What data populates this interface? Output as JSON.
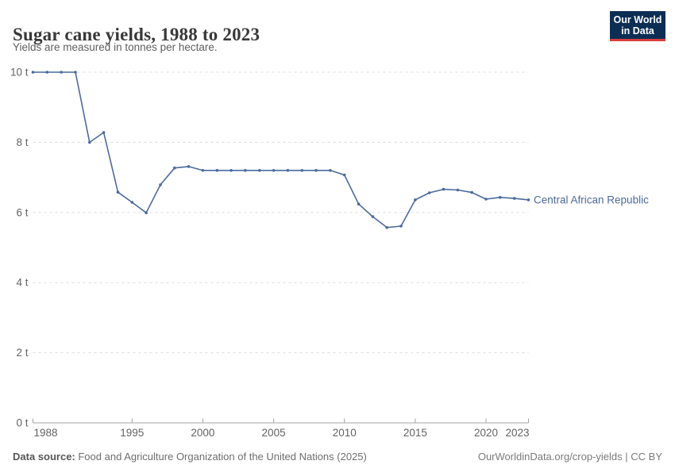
{
  "header": {
    "title": "Sugar cane yields, 1988 to 2023",
    "subtitle": "Yields are measured in tonnes per hectare."
  },
  "logo": {
    "line1": "Our World",
    "line2": "in Data",
    "bg_color": "#0d2e54",
    "accent_color": "#dc3f3f"
  },
  "chart_data": {
    "type": "line",
    "title": "Sugar cane yields, 1988 to 2023",
    "ylabel": "tonnes per hectare",
    "unit_suffix": " t",
    "xlim": [
      1988,
      2023
    ],
    "ylim": [
      0,
      10
    ],
    "yticks": [
      0,
      2,
      4,
      6,
      8,
      10
    ],
    "xticks": [
      1988,
      1995,
      2000,
      2005,
      2010,
      2015,
      2020,
      2023
    ],
    "grid": true,
    "legend_position": "end-of-line",
    "x": [
      1988,
      1989,
      1990,
      1991,
      1992,
      1993,
      1994,
      1995,
      1996,
      1997,
      1998,
      1999,
      2000,
      2001,
      2002,
      2003,
      2004,
      2005,
      2006,
      2007,
      2008,
      2009,
      2010,
      2011,
      2012,
      2013,
      2014,
      2015,
      2016,
      2017,
      2018,
      2019,
      2020,
      2021,
      2022,
      2023
    ],
    "series": [
      {
        "name": "Central African Republic",
        "color": "#4c6a9c",
        "values": [
          10,
          10,
          10,
          10,
          8.0,
          8.28,
          6.58,
          6.29,
          5.99,
          6.79,
          7.27,
          7.31,
          7.2,
          7.2,
          7.2,
          7.2,
          7.2,
          7.2,
          7.2,
          7.2,
          7.2,
          7.2,
          7.07,
          6.24,
          5.88,
          5.57,
          5.61,
          6.36,
          6.56,
          6.66,
          6.64,
          6.57,
          6.38,
          6.43,
          6.4,
          6.36
        ]
      }
    ],
    "colors": {
      "gridline": "#dcdcdc",
      "axis": "#a3a3a3",
      "tick_label": "#636363"
    }
  },
  "footer": {
    "source_label": "Data source:",
    "source_text": " Food and Agriculture Organization of the United Nations (2025)",
    "right_text": "OurWorldinData.org/crop-yields | CC BY"
  }
}
